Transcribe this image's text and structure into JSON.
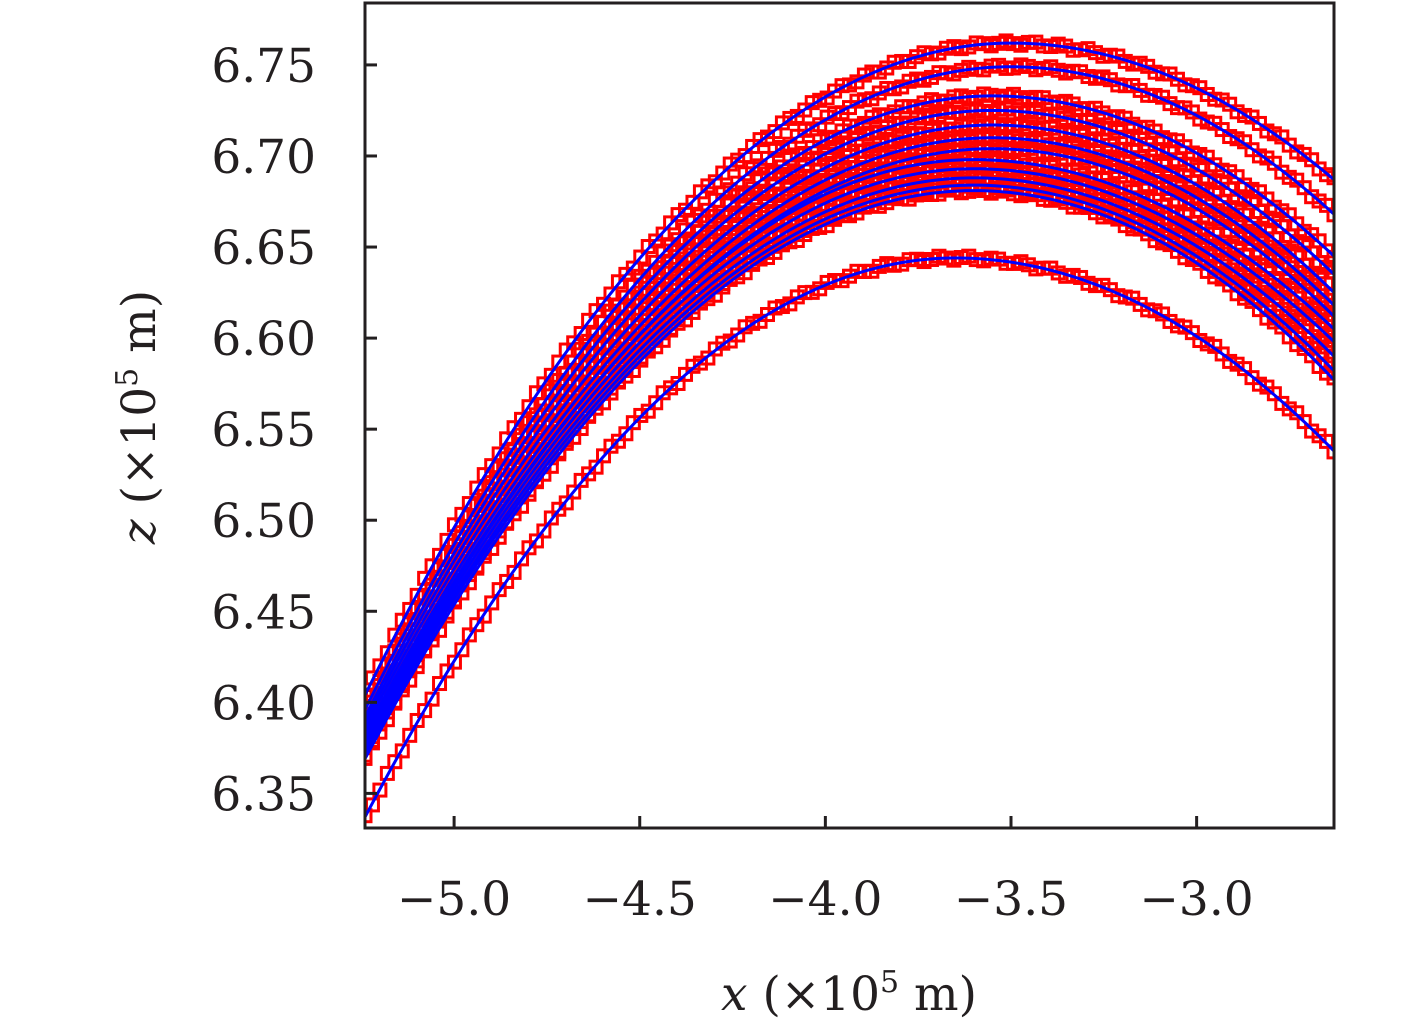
{
  "chart_data": {
    "type": "line",
    "xlabel": {
      "var": "x",
      "open": " (×10",
      "sup": "5",
      "close": " m)"
    },
    "ylabel": {
      "var": "z",
      "open": " (×10",
      "sup": "5",
      "close": " m)"
    },
    "xlim": [
      -5.24,
      -2.63
    ],
    "ylim": [
      6.331,
      6.784
    ],
    "xticks": [
      -5.0,
      -4.5,
      -4.0,
      -3.5,
      -3.0
    ],
    "xtick_labels": [
      "−5.0",
      "−4.5",
      "−4.0",
      "−3.5",
      "−3.0"
    ],
    "yticks": [
      6.35,
      6.4,
      6.45,
      6.5,
      6.55,
      6.6,
      6.65,
      6.7,
      6.75
    ],
    "ytick_labels": [
      "6.35",
      "6.40",
      "6.45",
      "6.50",
      "6.55",
      "6.60",
      "6.65",
      "6.70",
      "6.75"
    ],
    "grid": false,
    "legend": "none",
    "colors": {
      "markers": "#ff0000",
      "fit": "#0000ff",
      "axes": "#231f20"
    },
    "series_style": {
      "observed": "red square markers",
      "fit": "blue solid line"
    },
    "trajectories": [
      {
        "x_vertex": -3.5,
        "z_vertex": 6.762,
        "z_right": 6.687,
        "z_left": 6.404
      },
      {
        "x_vertex": -3.5,
        "z_vertex": 6.749,
        "z_right": 6.668,
        "z_left": 6.396
      },
      {
        "x_vertex": -3.55,
        "z_vertex": 6.733,
        "z_right": 6.645,
        "z_left": 6.392
      },
      {
        "x_vertex": -3.55,
        "z_vertex": 6.725,
        "z_right": 6.635,
        "z_left": 6.389
      },
      {
        "x_vertex": -3.55,
        "z_vertex": 6.717,
        "z_right": 6.625,
        "z_left": 6.386
      },
      {
        "x_vertex": -3.55,
        "z_vertex": 6.71,
        "z_right": 6.618,
        "z_left": 6.383
      },
      {
        "x_vertex": -3.55,
        "z_vertex": 6.704,
        "z_right": 6.612,
        "z_left": 6.381
      },
      {
        "x_vertex": -3.6,
        "z_vertex": 6.698,
        "z_right": 6.605,
        "z_left": 6.378
      },
      {
        "x_vertex": -3.6,
        "z_vertex": 6.693,
        "z_right": 6.598,
        "z_left": 6.376
      },
      {
        "x_vertex": -3.6,
        "z_vertex": 6.688,
        "z_right": 6.59,
        "z_left": 6.374
      },
      {
        "x_vertex": -3.6,
        "z_vertex": 6.684,
        "z_right": 6.582,
        "z_left": 6.372
      },
      {
        "x_vertex": -3.6,
        "z_vertex": 6.681,
        "z_right": 6.577,
        "z_left": 6.369
      },
      {
        "x_vertex": -3.65,
        "z_vertex": 6.644,
        "z_right": 6.538,
        "z_left": 6.337
      }
    ]
  }
}
